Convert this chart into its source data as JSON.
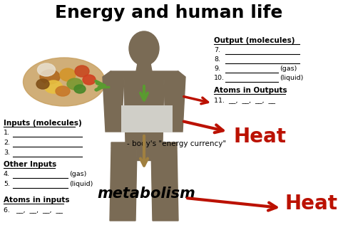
{
  "title": "Energy and human life",
  "title_fontsize": 18,
  "title_fontweight": "bold",
  "bg_color": "#ffffff",
  "figure_size": [
    4.74,
    3.16
  ],
  "dpi": 100,
  "left_labels": {
    "inputs_header": "Inputs (molecules)",
    "inputs": [
      "1.",
      "2.",
      "3."
    ],
    "other_header": "Other Inputs",
    "other": [
      [
        "4.",
        "(gas)"
      ],
      [
        "5.",
        "(liquid)"
      ]
    ],
    "atoms_header": "Atoms in inputs",
    "atoms": "6.   __,  __,  __,  __"
  },
  "right_labels": {
    "output_header": "Output (molecules)",
    "outputs": [
      "7.",
      "8.",
      [
        "9.",
        "(gas)"
      ],
      [
        "10.",
        "(liquid)"
      ]
    ],
    "atoms_header": "Atoms in Outputs",
    "atoms": "11.  __,  __,  __,  __",
    "heat1": "Heat",
    "heat2": "Heat"
  },
  "center_labels": {
    "energy_currency": "- body's \"energy currency\"",
    "metabolism": "metabolism"
  },
  "human_color": "#7a6b55",
  "box_color": "#d0cfc8",
  "arrow_green": "#5a9a30",
  "arrow_red": "#bb1100",
  "arrow_tan": "#a08040",
  "line_color": "#000000"
}
